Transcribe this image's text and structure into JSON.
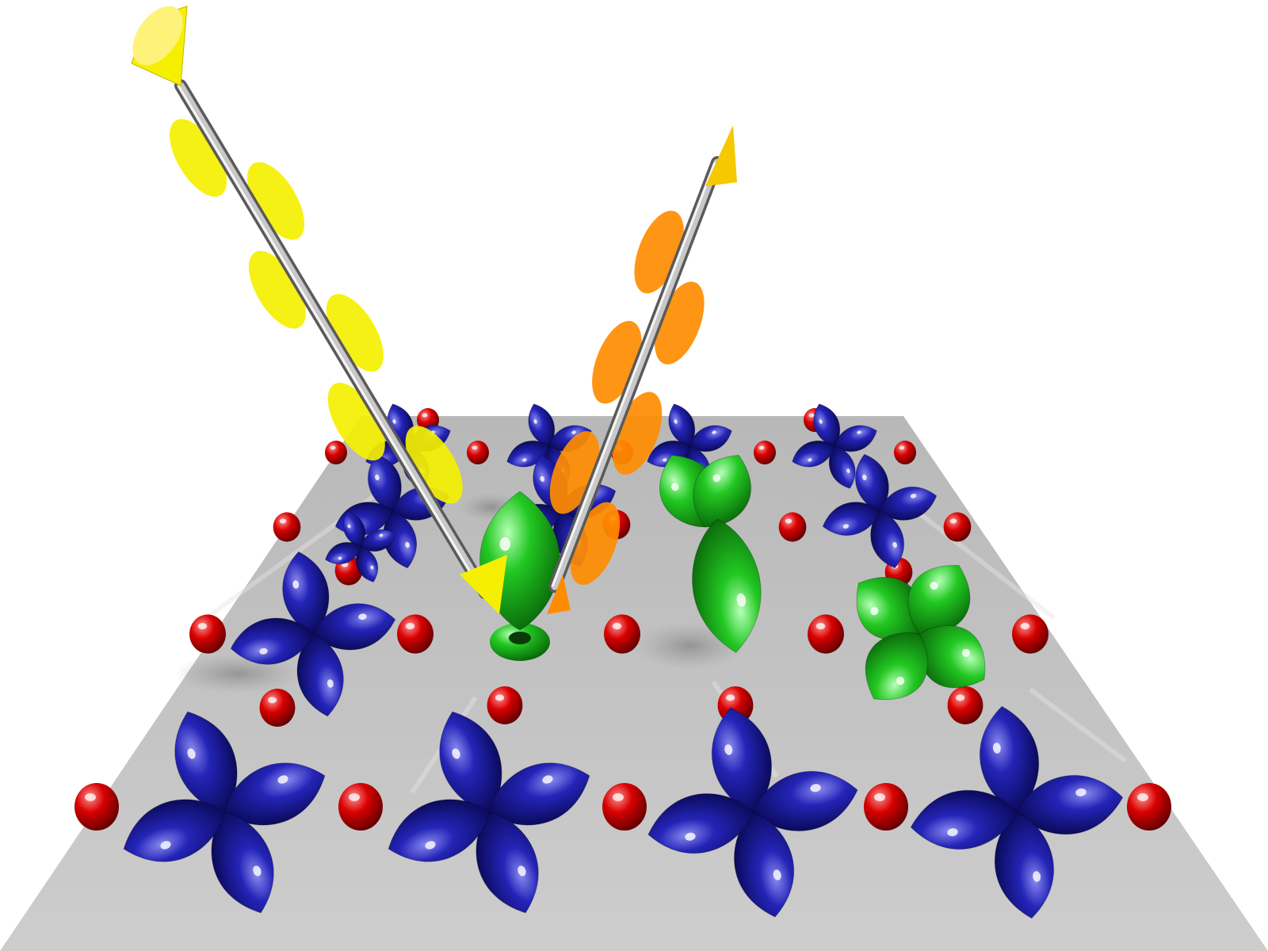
{
  "scene": {
    "kind": "3d-render",
    "subject": "orbital-lattice-with-incident-and-scattered-beams",
    "colors": {
      "background": "#ffffff",
      "surface": "#c8c8c8",
      "blue_orbital": "#16168c",
      "green_orbital": "#18b418",
      "red_atom": "#c80000",
      "incident_beam": "#f5f000",
      "scattered_beam": "#ff8c00",
      "rod": "#9a9a9a"
    },
    "lattice": {
      "blue_cloverleaf_count": 14,
      "green_orbital_count": 3,
      "red_atom_count": 20
    },
    "beams": [
      {
        "name": "incident-beam",
        "color_key": "incident_beam",
        "wave_lobes": 6
      },
      {
        "name": "scattered-beam",
        "color_key": "scattered_beam",
        "wave_lobes": 6
      }
    ]
  }
}
